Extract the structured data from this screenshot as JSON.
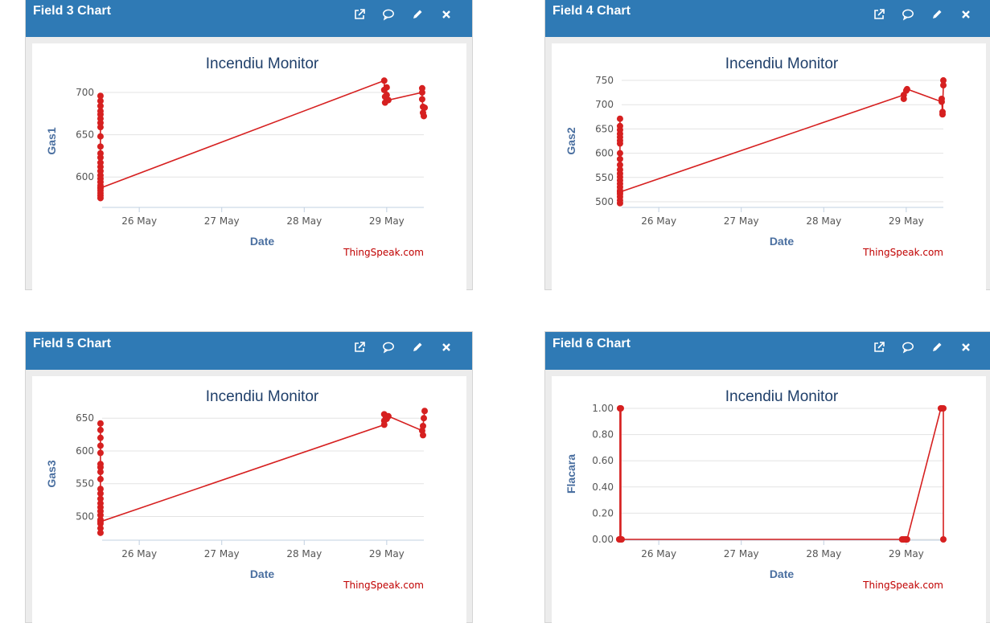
{
  "panels": [
    {
      "title": "Field 3 Chart",
      "icons": [
        "external-link-icon",
        "comment-icon",
        "pencil-icon",
        "close-icon"
      ]
    },
    {
      "title": "Field 4 Chart",
      "icons": [
        "external-link-icon",
        "comment-icon",
        "pencil-icon",
        "close-icon"
      ]
    },
    {
      "title": "Field 5 Chart",
      "icons": [
        "external-link-icon",
        "comment-icon",
        "pencil-icon",
        "close-icon"
      ]
    },
    {
      "title": "Field 6 Chart",
      "icons": [
        "external-link-icon",
        "comment-icon",
        "pencil-icon",
        "close-icon"
      ]
    }
  ],
  "colors": {
    "header": "#2f7ab5",
    "series": "#d62020",
    "title": "#1f3f6a",
    "axis_label": "#4a6fa0",
    "credit": "#c00000"
  },
  "chart_data": [
    {
      "type": "line",
      "title": "Incendiu Monitor",
      "xlabel": "Date",
      "ylabel": "Gas1",
      "credit": "ThingSpeak.com",
      "x_ticks": [
        "26 May",
        "27 May",
        "28 May",
        "29 May"
      ],
      "y_ticks": [
        "600",
        "650",
        "700"
      ],
      "xlim": [
        25.55,
        29.45
      ],
      "ylim": [
        565,
        720
      ],
      "grid": true,
      "series": [
        {
          "points": [
            [
              25.53,
              575
            ],
            [
              25.53,
              578
            ],
            [
              25.53,
              581
            ],
            [
              25.53,
              584
            ],
            [
              25.53,
              587
            ],
            [
              25.53,
              590
            ],
            [
              25.53,
              594
            ],
            [
              25.53,
              598
            ],
            [
              25.53,
              602
            ],
            [
              25.53,
              607
            ],
            [
              25.53,
              612
            ],
            [
              25.53,
              617
            ],
            [
              25.53,
              623
            ],
            [
              25.53,
              628
            ],
            [
              25.53,
              636
            ],
            [
              25.53,
              648
            ],
            [
              25.53,
              659
            ],
            [
              25.53,
              664
            ],
            [
              25.53,
              669
            ],
            [
              25.53,
              674
            ],
            [
              25.53,
              678
            ],
            [
              25.53,
              684
            ],
            [
              25.53,
              690
            ],
            [
              25.53,
              696
            ],
            [
              25.53,
              587
            ],
            [
              28.97,
              714
            ],
            [
              28.97,
              703
            ],
            [
              28.98,
              695
            ],
            [
              28.98,
              688
            ],
            [
              29.0,
              706
            ],
            [
              29.0,
              697
            ],
            [
              29.02,
              691
            ],
            [
              29.43,
              700
            ],
            [
              29.43,
              705
            ],
            [
              29.43,
              692
            ],
            [
              29.44,
              683
            ],
            [
              29.44,
              676
            ],
            [
              29.45,
              672
            ],
            [
              29.46,
              682
            ]
          ]
        }
      ]
    },
    {
      "type": "line",
      "title": "Incendiu Monitor",
      "xlabel": "Date",
      "ylabel": "Gas2",
      "credit": "ThingSpeak.com",
      "x_ticks": [
        "26 May",
        "27 May",
        "28 May",
        "29 May"
      ],
      "y_ticks": [
        "500",
        "550",
        "600",
        "650",
        "700",
        "750"
      ],
      "xlim": [
        25.55,
        29.45
      ],
      "ylim": [
        490,
        760
      ],
      "grid": true,
      "series": [
        {
          "points": [
            [
              25.53,
              497
            ],
            [
              25.53,
              503
            ],
            [
              25.53,
              510
            ],
            [
              25.53,
              516
            ],
            [
              25.53,
              523
            ],
            [
              25.53,
              530
            ],
            [
              25.53,
              537
            ],
            [
              25.53,
              544
            ],
            [
              25.53,
              551
            ],
            [
              25.53,
              558
            ],
            [
              25.53,
              566
            ],
            [
              25.53,
              576
            ],
            [
              25.53,
              588
            ],
            [
              25.53,
              600
            ],
            [
              25.53,
              620
            ],
            [
              25.53,
              626
            ],
            [
              25.53,
              633
            ],
            [
              25.53,
              640
            ],
            [
              25.53,
              648
            ],
            [
              25.53,
              656
            ],
            [
              25.53,
              671
            ],
            [
              25.53,
              520
            ],
            [
              28.97,
              720
            ],
            [
              28.97,
              712
            ],
            [
              29.0,
              729
            ],
            [
              29.01,
              732
            ],
            [
              29.43,
              706
            ],
            [
              29.43,
              712
            ],
            [
              29.44,
              680
            ],
            [
              29.44,
              685
            ],
            [
              29.45,
              740
            ],
            [
              29.45,
              750
            ]
          ]
        }
      ]
    },
    {
      "type": "line",
      "title": "Incendiu Monitor",
      "xlabel": "Date",
      "ylabel": "Gas3",
      "credit": "ThingSpeak.com",
      "x_ticks": [
        "26 May",
        "27 May",
        "28 May",
        "29 May"
      ],
      "y_ticks": [
        "500",
        "550",
        "600",
        "650"
      ],
      "xlim": [
        25.55,
        29.45
      ],
      "ylim": [
        465,
        665
      ],
      "grid": true,
      "series": [
        {
          "points": [
            [
              25.53,
              475
            ],
            [
              25.53,
              482
            ],
            [
              25.53,
              489
            ],
            [
              25.53,
              495
            ],
            [
              25.53,
              502
            ],
            [
              25.53,
              508
            ],
            [
              25.53,
              514
            ],
            [
              25.53,
              520
            ],
            [
              25.53,
              527
            ],
            [
              25.53,
              535
            ],
            [
              25.53,
              542
            ],
            [
              25.53,
              557
            ],
            [
              25.53,
              568
            ],
            [
              25.53,
              575
            ],
            [
              25.53,
              580
            ],
            [
              25.53,
              597
            ],
            [
              25.53,
              608
            ],
            [
              25.53,
              620
            ],
            [
              25.53,
              632
            ],
            [
              25.53,
              642
            ],
            [
              25.53,
              492
            ],
            [
              28.97,
              640
            ],
            [
              28.97,
              646
            ],
            [
              28.97,
              656
            ],
            [
              28.99,
              651
            ],
            [
              29.0,
              649
            ],
            [
              29.02,
              653
            ],
            [
              29.43,
              631
            ],
            [
              29.44,
              624
            ],
            [
              29.44,
              638
            ],
            [
              29.45,
              650
            ],
            [
              29.46,
              661
            ]
          ]
        }
      ]
    },
    {
      "type": "line",
      "title": "Incendiu Monitor",
      "xlabel": "Date",
      "ylabel": "Flacara",
      "credit": "ThingSpeak.com",
      "x_ticks": [
        "26 May",
        "27 May",
        "28 May",
        "29 May"
      ],
      "y_ticks": [
        "0.00",
        "0.20",
        "0.40",
        "0.60",
        "0.80",
        "1.00"
      ],
      "xlim": [
        25.55,
        29.45
      ],
      "ylim": [
        0,
        1
      ],
      "grid": true,
      "series": [
        {
          "points": [
            [
              25.52,
              0
            ],
            [
              25.53,
              0
            ],
            [
              25.53,
              1
            ],
            [
              25.54,
              1
            ],
            [
              25.54,
              0
            ],
            [
              25.55,
              0
            ],
            [
              28.95,
              0
            ],
            [
              28.97,
              0
            ],
            [
              28.99,
              0
            ],
            [
              29.0,
              0
            ],
            [
              29.01,
              0
            ],
            [
              29.42,
              1
            ],
            [
              29.43,
              1
            ],
            [
              29.45,
              1
            ],
            [
              29.45,
              0
            ]
          ]
        }
      ]
    }
  ]
}
